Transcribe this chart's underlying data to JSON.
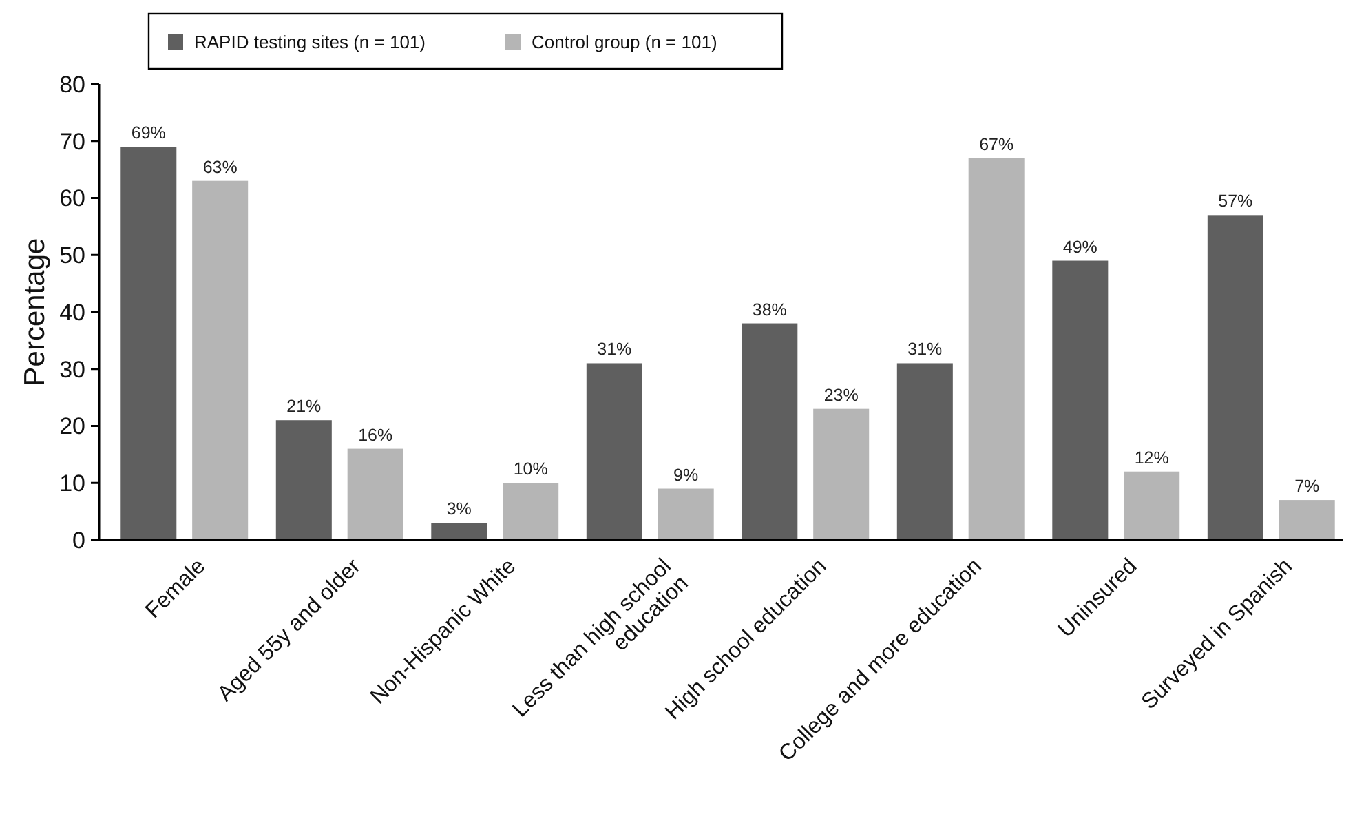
{
  "chart_data": {
    "type": "bar",
    "categories": [
      "Female",
      "Aged 55y and older",
      "Non-Hispanic White",
      "Less than high school education",
      "High school education",
      "College and more education",
      "Uninsured",
      "Surveyed in Spanish"
    ],
    "series": [
      {
        "name": "RAPID testing sites (n = 101)",
        "color": "#5f5f5f",
        "values": [
          69,
          21,
          3,
          31,
          38,
          31,
          49,
          57
        ],
        "value_labels": [
          "69%",
          "21%",
          "3%",
          "31%",
          "38%",
          "31%",
          "49%",
          "57%"
        ]
      },
      {
        "name": "Control group (n = 101)",
        "color": "#b5b5b5",
        "values": [
          63,
          16,
          10,
          9,
          23,
          67,
          12,
          7
        ],
        "value_labels": [
          "63%",
          "16%",
          "10%",
          "9%",
          "23%",
          "67%",
          "12%",
          "7%"
        ]
      }
    ],
    "ylabel": "Percentage",
    "ylim": [
      0,
      80
    ],
    "yticks": [
      0,
      10,
      20,
      30,
      40,
      50,
      60,
      70,
      80
    ],
    "grid": false,
    "legend": "top left"
  }
}
